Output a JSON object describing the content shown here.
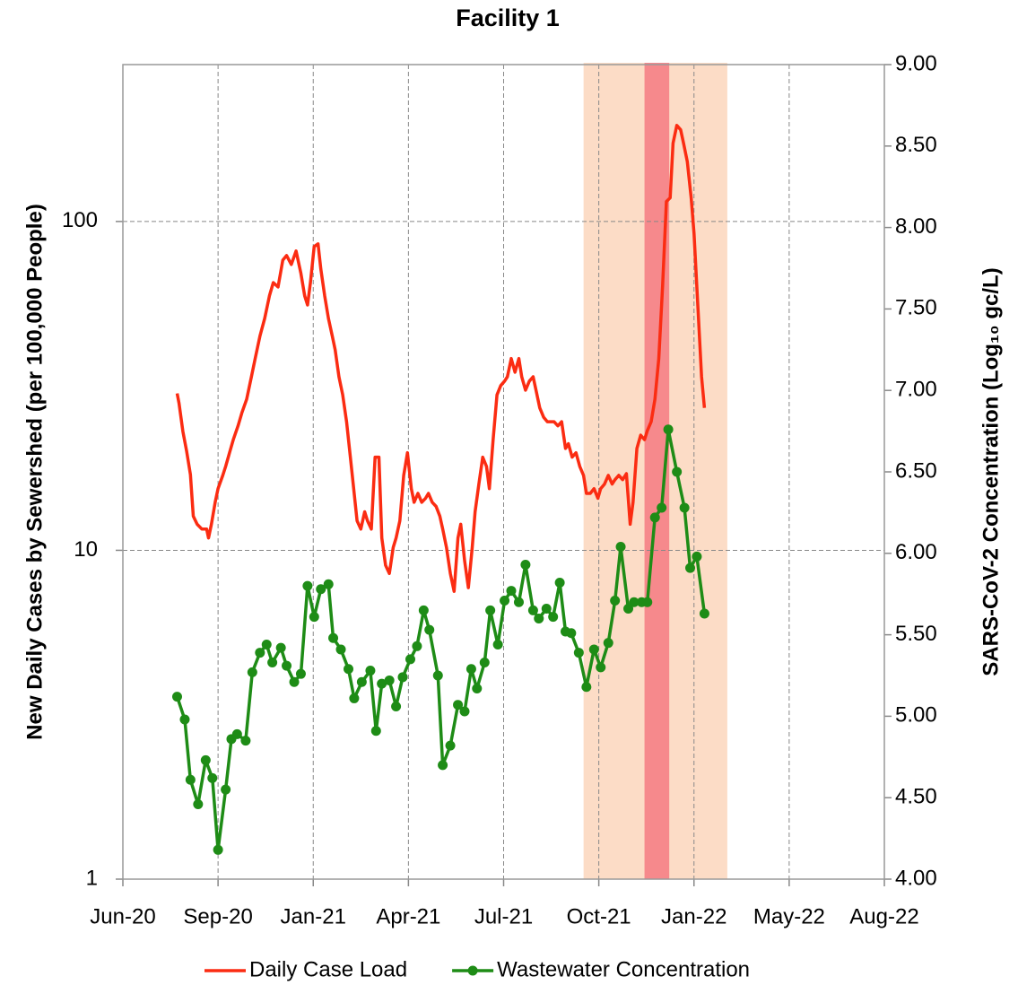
{
  "chart_data": {
    "type": "line",
    "title": "Facility 1",
    "ylabel": "New Daily Cases by Sewershed (per 100,000 People)",
    "y2label": "SARS-CoV-2 Concentration (Log₁₀ gc/L)",
    "xlim": [
      0,
      8
    ],
    "xticks": [
      {
        "value": 0,
        "label": "Jun-20"
      },
      {
        "value": 1,
        "label": "Sep-20"
      },
      {
        "value": 2,
        "label": "Jan-21"
      },
      {
        "value": 3,
        "label": "Apr-21"
      },
      {
        "value": 4,
        "label": "Jul-21"
      },
      {
        "value": 5,
        "label": "Oct-21"
      },
      {
        "value": 6,
        "label": "Jan-22"
      },
      {
        "value": 7,
        "label": "May-22"
      },
      {
        "value": 8,
        "label": "Aug-22"
      }
    ],
    "ylim": [
      1,
      300
    ],
    "ylog": true,
    "yticks": [
      1,
      10,
      100
    ],
    "y2lim": [
      4,
      9
    ],
    "y2ticks": [
      {
        "value": 4,
        "label": "4.00"
      },
      {
        "value": 4.5,
        "label": "4.50"
      },
      {
        "value": 5,
        "label": "5.00"
      },
      {
        "value": 5.5,
        "label": "5.50"
      },
      {
        "value": 6,
        "label": "6.00"
      },
      {
        "value": 6.5,
        "label": "6.50"
      },
      {
        "value": 7,
        "label": "7.00"
      },
      {
        "value": 7.5,
        "label": "7.50"
      },
      {
        "value": 8,
        "label": "8.00"
      },
      {
        "value": 8.5,
        "label": "8.50"
      },
      {
        "value": 9,
        "label": "9.00"
      }
    ],
    "grid": true,
    "legend": "bottom",
    "shaded_regions": [
      {
        "x": [
          4.84,
          6.35
        ],
        "color": "#fcdcc6"
      },
      {
        "x": [
          5.48,
          5.74
        ],
        "color": "#f6898c"
      }
    ],
    "series": [
      {
        "name": "Daily Case Load",
        "color": "#fb2c12",
        "markers": false,
        "x": [
          0.57,
          0.59,
          0.63,
          0.67,
          0.71,
          0.74,
          0.78,
          0.83,
          0.88,
          0.9,
          0.93,
          0.97,
          1.0,
          1.05,
          1.08,
          1.12,
          1.16,
          1.21,
          1.25,
          1.3,
          1.35,
          1.39,
          1.44,
          1.49,
          1.54,
          1.58,
          1.63,
          1.68,
          1.72,
          1.77,
          1.82,
          1.87,
          1.91,
          1.94,
          1.97,
          2.01,
          2.05,
          2.08,
          2.12,
          2.16,
          2.2,
          2.23,
          2.27,
          2.31,
          2.35,
          2.38,
          2.42,
          2.46,
          2.5,
          2.54,
          2.57,
          2.61,
          2.65,
          2.69,
          2.72,
          2.76,
          2.8,
          2.84,
          2.87,
          2.91,
          2.95,
          2.99,
          3.03,
          3.06,
          3.1,
          3.14,
          3.18,
          3.21,
          3.25,
          3.29,
          3.33,
          3.36,
          3.4,
          3.44,
          3.48,
          3.52,
          3.55,
          3.59,
          3.63,
          3.67,
          3.7,
          3.74,
          3.78,
          3.82,
          3.85,
          3.89,
          3.93,
          3.97,
          4.01,
          4.04,
          4.08,
          4.12,
          4.16,
          4.19,
          4.23,
          4.27,
          4.31,
          4.34,
          4.38,
          4.42,
          4.46,
          4.5,
          4.53,
          4.57,
          4.61,
          4.65,
          4.68,
          4.72,
          4.76,
          4.8,
          4.84,
          4.87,
          4.91,
          4.95,
          4.99,
          5.02,
          5.06,
          5.1,
          5.14,
          5.17,
          5.21,
          5.25,
          5.29,
          5.33,
          5.36,
          5.4,
          5.44,
          5.48,
          5.51,
          5.55,
          5.59,
          5.63,
          5.67,
          5.71,
          5.75,
          5.78,
          5.82,
          5.86,
          5.89,
          5.93,
          5.97,
          6.0,
          6.04,
          6.08,
          6.11
        ],
        "values": [
          30,
          28,
          23,
          20,
          17,
          12.7,
          12,
          11.6,
          11.6,
          10.9,
          12,
          14,
          15.4,
          16.9,
          18,
          19.8,
          21.7,
          23.9,
          26.2,
          28.8,
          33.7,
          38.3,
          44.8,
          50.7,
          59.4,
          65.2,
          63.2,
          76.3,
          78.8,
          74,
          81.3,
          69.5,
          59.4,
          55.7,
          65.2,
          83.9,
          85.5,
          71.7,
          59.4,
          50.7,
          44.8,
          40.7,
          33.7,
          29.7,
          24.6,
          20.4,
          15.9,
          12.3,
          11.6,
          13.1,
          12.3,
          11.6,
          19.2,
          19.2,
          10.9,
          9.0,
          8.5,
          10.2,
          10.9,
          12.3,
          16.9,
          19.8,
          15.4,
          14,
          14.9,
          14,
          14.4,
          14.9,
          14,
          13.6,
          12.7,
          11.6,
          10.2,
          8.5,
          7.5,
          10.9,
          12,
          9.3,
          7.7,
          10.2,
          13.1,
          15.9,
          19.2,
          18,
          15.4,
          21.7,
          29.7,
          31.7,
          32.7,
          33.7,
          38.3,
          34.8,
          38.3,
          33.7,
          30.7,
          32.7,
          33.7,
          30.7,
          27.1,
          25.4,
          24.6,
          24.6,
          24.6,
          23.9,
          24.6,
          20.4,
          21.1,
          19.2,
          19.8,
          18,
          16.9,
          14.9,
          14.9,
          15.4,
          14.4,
          15.4,
          15.9,
          16.9,
          15.9,
          16.4,
          16.9,
          16.4,
          17.1,
          12,
          14,
          20.4,
          22.4,
          21.7,
          23.1,
          24.6,
          28.8,
          38.3,
          63.2,
          115,
          118,
          173,
          196,
          190,
          173,
          152,
          118,
          92,
          55.7,
          33.7,
          27.1
        ]
      },
      {
        "name": "Wastewater Concentration",
        "color": "#1e8c16",
        "markers": true,
        "axis": "y2",
        "x": [
          0.57,
          0.65,
          0.71,
          0.79,
          0.87,
          0.94,
          1.0,
          1.08,
          1.14,
          1.2,
          1.29,
          1.36,
          1.44,
          1.51,
          1.57,
          1.66,
          1.72,
          1.8,
          1.87,
          1.94,
          2.01,
          2.08,
          2.16,
          2.21,
          2.29,
          2.37,
          2.43,
          2.51,
          2.6,
          2.66,
          2.72,
          2.8,
          2.87,
          2.94,
          3.02,
          3.09,
          3.16,
          3.22,
          3.31,
          3.36,
          3.44,
          3.52,
          3.59,
          3.66,
          3.72,
          3.8,
          3.86,
          3.94,
          4.01,
          4.08,
          4.16,
          4.23,
          4.31,
          4.37,
          4.45,
          4.52,
          4.59,
          4.65,
          4.71,
          4.79,
          4.87,
          4.95,
          5.02,
          5.1,
          5.17,
          5.23,
          5.31,
          5.37,
          5.45,
          5.51,
          5.59,
          5.66,
          5.73,
          5.82,
          5.9,
          5.96,
          6.03,
          6.11
        ],
        "values": [
          5.12,
          4.98,
          4.61,
          4.46,
          4.73,
          4.62,
          4.18,
          4.55,
          4.86,
          4.89,
          4.85,
          5.27,
          5.39,
          5.44,
          5.33,
          5.42,
          5.31,
          5.21,
          5.26,
          5.8,
          5.61,
          5.78,
          5.81,
          5.48,
          5.41,
          5.29,
          5.11,
          5.21,
          5.28,
          4.91,
          5.2,
          5.22,
          5.06,
          5.24,
          5.35,
          5.43,
          5.65,
          5.53,
          5.25,
          4.7,
          4.82,
          5.07,
          5.03,
          5.29,
          5.17,
          5.33,
          5.65,
          5.44,
          5.71,
          5.77,
          5.7,
          5.93,
          5.65,
          5.6,
          5.66,
          5.61,
          5.82,
          5.52,
          5.51,
          5.39,
          5.18,
          5.41,
          5.3,
          5.45,
          5.71,
          6.04,
          5.66,
          5.7,
          5.7,
          5.7,
          6.22,
          6.28,
          6.76,
          6.5,
          6.28,
          5.91,
          5.98,
          5.63
        ]
      }
    ]
  }
}
